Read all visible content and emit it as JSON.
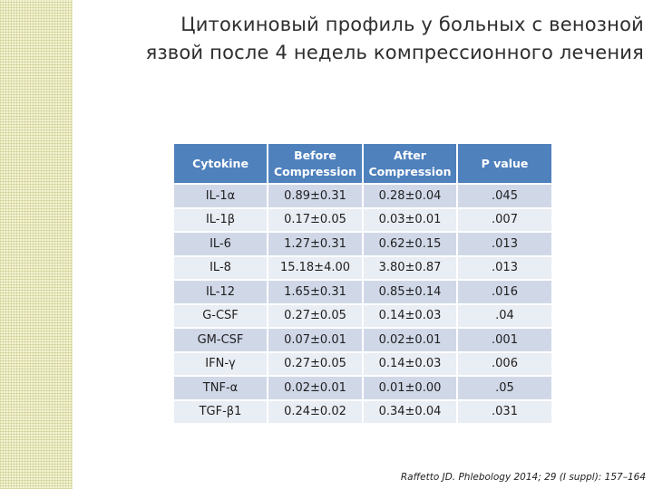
{
  "slide": {
    "title_line1": "Цитокиновый профиль у больных с венозной",
    "title_line2": "язвой после 4 недель компрессионного лечения",
    "citation": "Raffetto JD.  Phlebology 2014;  29 (I suppl): 157–164"
  },
  "table": {
    "headers": [
      {
        "line1": "Cytokine",
        "line2": ""
      },
      {
        "line1": "Before",
        "line2": "Compression"
      },
      {
        "line1": "After",
        "line2": "Compression"
      },
      {
        "line1": "P value",
        "line2": ""
      }
    ],
    "rows": [
      [
        "IL-1α",
        "0.89±0.31",
        "0.28±0.04",
        ".045"
      ],
      [
        "IL-1β",
        "0.17±0.05",
        "0.03±0.01",
        ".007"
      ],
      [
        "IL-6",
        "1.27±0.31",
        "0.62±0.15",
        ".013"
      ],
      [
        "IL-8",
        "15.18±4.00",
        "3.80±0.87",
        ".013"
      ],
      [
        "IL-12",
        "1.65±0.31",
        "0.85±0.14",
        ".016"
      ],
      [
        "G-CSF",
        "0.27±0.05",
        "0.14±0.03",
        ".04"
      ],
      [
        "GM-CSF",
        "0.07±0.01",
        "0.02±0.01",
        ".001"
      ],
      [
        "IFN-γ",
        "0.27±0.05",
        "0.14±0.03",
        ".006"
      ],
      [
        "TNF-α",
        "0.02±0.01",
        "0.01±0.00",
        ".05"
      ],
      [
        "TGF-β1",
        "0.24±0.02",
        "0.34±0.04",
        ".031"
      ]
    ]
  },
  "colors": {
    "header_bg": "#4f81bd",
    "row_band_dark": "#d0d8e8",
    "row_band_light": "#e9edf4",
    "side_strip": "#f3f3d2"
  }
}
